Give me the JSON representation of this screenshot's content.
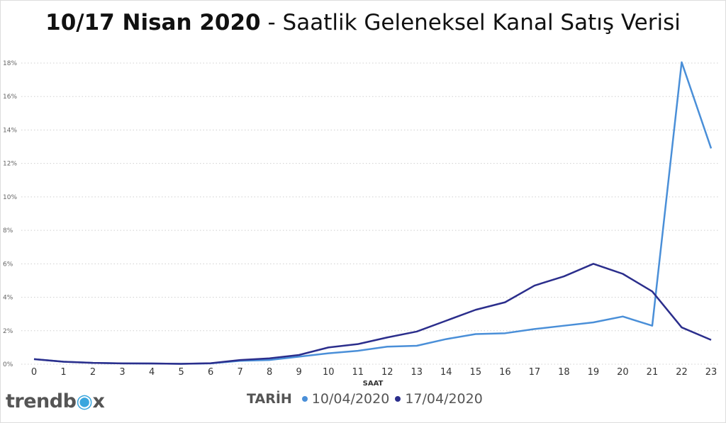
{
  "title_bold": "10/17 Nisan 2020",
  "title_rest": " - Saatlik Geleneksel Kanal Satış Verisi",
  "logo_text": "trendbox",
  "chart_data": {
    "type": "line",
    "title": "10/17 Nisan 2020 - Saatlik Geleneksel Kanal Satış Verisi",
    "xlabel": "SAAT",
    "ylabel": "",
    "x": [
      0,
      1,
      2,
      3,
      4,
      5,
      6,
      7,
      8,
      9,
      10,
      11,
      12,
      13,
      14,
      15,
      16,
      17,
      18,
      19,
      20,
      21,
      22,
      23
    ],
    "ylim": [
      0,
      18
    ],
    "yticks": [
      0,
      2,
      4,
      6,
      8,
      10,
      12,
      14,
      16,
      18
    ],
    "ytick_labels": [
      "0%",
      "2%",
      "4%",
      "6%",
      "8%",
      "10%",
      "12%",
      "14%",
      "16%",
      "18%"
    ],
    "grid": true,
    "legend_title": "TARİH",
    "legend_position": "bottom",
    "series": [
      {
        "name": "10/04/2020",
        "color": "#4a8fd8",
        "values": [
          0.3,
          0.15,
          0.08,
          0.05,
          0.04,
          0.02,
          0.05,
          0.2,
          0.25,
          0.45,
          0.65,
          0.8,
          1.05,
          1.1,
          1.5,
          1.8,
          1.85,
          2.1,
          2.3,
          2.5,
          2.85,
          2.3,
          18.05,
          12.9
        ]
      },
      {
        "name": "17/04/2020",
        "color": "#2b2e8c",
        "values": [
          0.3,
          0.15,
          0.08,
          0.05,
          0.04,
          0.02,
          0.06,
          0.25,
          0.35,
          0.55,
          1.0,
          1.2,
          1.6,
          1.95,
          2.6,
          3.25,
          3.7,
          4.7,
          5.25,
          6.0,
          5.4,
          4.35,
          2.2,
          1.45
        ]
      }
    ]
  }
}
